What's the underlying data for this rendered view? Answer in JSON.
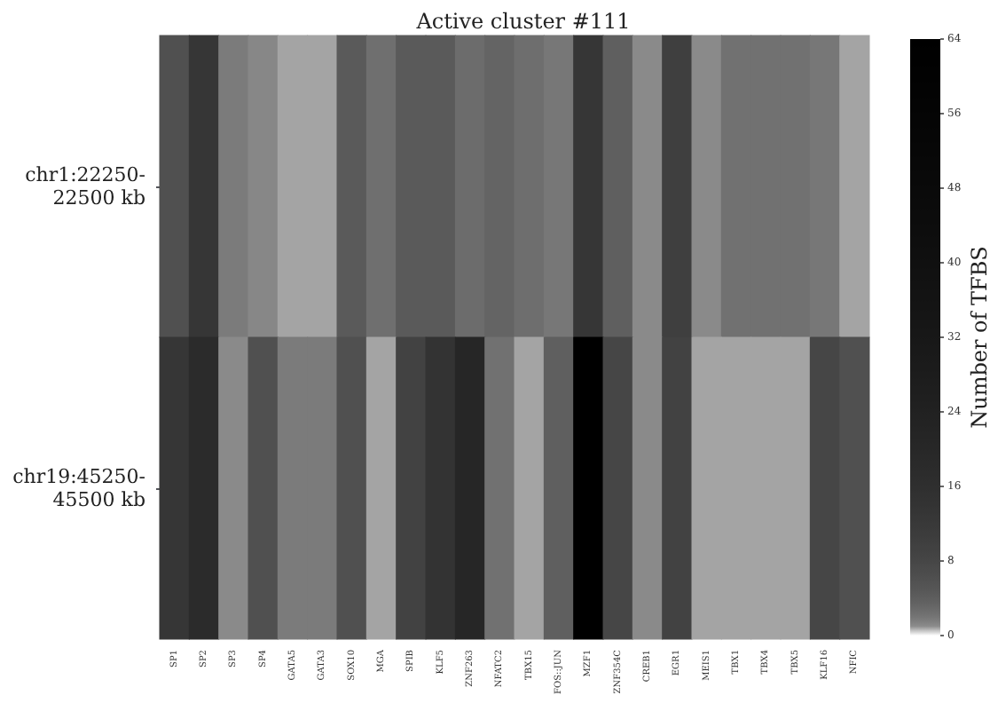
{
  "chart_data": {
    "type": "heatmap",
    "title": "Active cluster #111",
    "clabel": "Number of TFBS",
    "categories": [
      "SP1",
      "SP2",
      "SP3",
      "SP4",
      "GATA5",
      "GATA3",
      "SOX10",
      "MGA",
      "SPIB",
      "KLF5",
      "ZNF263",
      "NFATC2",
      "TBX15",
      "FOS::JUN",
      "MZF1",
      "ZNF354C",
      "CREB1",
      "EGR1",
      "MEIS1",
      "TBX1",
      "TBX4",
      "TBX5",
      "KLF16",
      "NFIC"
    ],
    "y_categories": [
      "chr1:22250-22500 kb",
      "chr19:45250-45500 kb"
    ],
    "cells": [
      [
        6,
        13,
        1.7,
        1.2,
        0.8,
        0.8,
        4.5,
        2.4,
        4.5,
        4.5,
        2.6,
        3.3,
        2.5,
        1.9,
        13,
        3.9,
        1.1,
        10,
        1.1,
        2.3,
        2.3,
        2.3,
        1.9,
        0.8
      ],
      [
        13,
        18,
        1.1,
        6,
        1.7,
        1.7,
        6,
        0.8,
        9,
        14,
        21,
        2.3,
        0.8,
        3.9,
        64,
        8,
        1.1,
        9,
        0.8,
        0.8,
        0.8,
        0.8,
        8,
        6
      ]
    ],
    "clim": [
      0,
      64
    ],
    "cticks": [
      0,
      8,
      16,
      24,
      32,
      40,
      48,
      56,
      64
    ]
  }
}
